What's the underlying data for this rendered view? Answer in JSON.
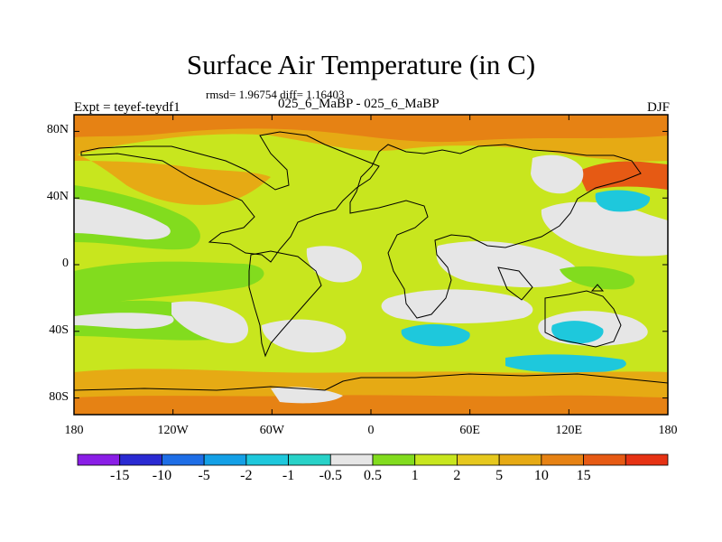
{
  "title": "Surface Air Temperature (in C)",
  "stats": "rmsd= 1.96754  diff= 1.16403",
  "left_label": "Expt = teyef-teydf1",
  "subtitle": "025_6_MaBP - 025_6_MaBP",
  "right_label": "DJF",
  "y_ticks": [
    {
      "label": "80N",
      "lat": 80
    },
    {
      "label": "40N",
      "lat": 40
    },
    {
      "label": "0",
      "lat": 0
    },
    {
      "label": "40S",
      "lat": -40
    },
    {
      "label": "80S",
      "lat": -80
    }
  ],
  "x_ticks": [
    {
      "label": "180",
      "lon": -180
    },
    {
      "label": "120W",
      "lon": -120
    },
    {
      "label": "60W",
      "lon": -60
    },
    {
      "label": "0",
      "lon": 0
    },
    {
      "label": "60E",
      "lon": 60
    },
    {
      "label": "120E",
      "lon": 120
    },
    {
      "label": "180",
      "lon": 180
    }
  ],
  "colorbar": {
    "colors": [
      "#8a1ee6",
      "#2a2ad2",
      "#1e6ee6",
      "#14a0e6",
      "#1ec8dc",
      "#28d2c8",
      "#e6e6e6",
      "#82dc1e",
      "#c8e61e",
      "#e6c81e",
      "#e6aa14",
      "#e68214",
      "#e65a14",
      "#e63214"
    ],
    "labels": [
      "-15",
      "-10",
      "-5",
      "-2",
      "-1",
      "-0.5",
      "0.5",
      "1",
      "2",
      "5",
      "10",
      "15"
    ]
  }
}
